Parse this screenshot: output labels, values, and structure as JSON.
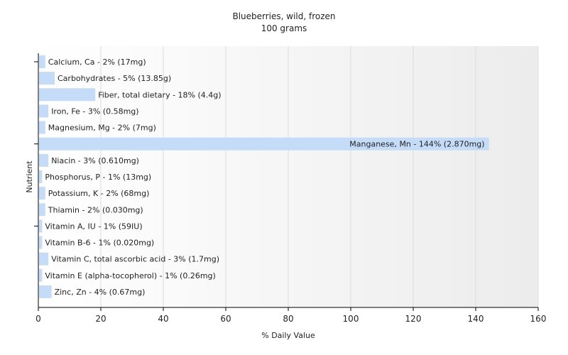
{
  "chart_data": {
    "type": "bar",
    "orientation": "horizontal",
    "title": "Blueberries, wild, frozen",
    "subtitle": "100 grams",
    "xlabel": "% Daily Value",
    "ylabel": "Nutrient",
    "xlim": [
      0,
      160
    ],
    "xticks": [
      0,
      20,
      40,
      60,
      80,
      100,
      120,
      140,
      160
    ],
    "grid": "vertical",
    "bar_color": "#c4dcf8",
    "categories": [
      "Calcium, Ca",
      "Carbohydrates",
      "Fiber, total dietary",
      "Iron, Fe",
      "Magnesium, Mg",
      "Manganese, Mn",
      "Niacin",
      "Phosphorus, P",
      "Potassium, K",
      "Thiamin",
      "Vitamin A, IU",
      "Vitamin B-6",
      "Vitamin C, total ascorbic acid",
      "Vitamin E (alpha-tocopherol)",
      "Zinc, Zn"
    ],
    "values": [
      2,
      5,
      18,
      3,
      2,
      144,
      3,
      1,
      2,
      2,
      1,
      1,
      3,
      1,
      4
    ],
    "labels": [
      "Calcium, Ca - 2% (17mg)",
      "Carbohydrates - 5% (13.85g)",
      "Fiber, total dietary - 18% (4.4g)",
      "Iron, Fe - 3% (0.58mg)",
      "Magnesium, Mg - 2% (7mg)",
      "Manganese, Mn - 144% (2.870mg)",
      "Niacin - 3% (0.610mg)",
      "Phosphorus, P - 1% (13mg)",
      "Potassium, K - 2% (68mg)",
      "Thiamin - 2% (0.030mg)",
      "Vitamin A, IU - 1% (59IU)",
      "Vitamin B-6 - 1% (0.020mg)",
      "Vitamin C, total ascorbic acid - 3% (1.7mg)",
      "Vitamin E (alpha-tocopherol) - 1% (0.26mg)",
      "Zinc, Zn - 4% (0.67mg)"
    ]
  }
}
